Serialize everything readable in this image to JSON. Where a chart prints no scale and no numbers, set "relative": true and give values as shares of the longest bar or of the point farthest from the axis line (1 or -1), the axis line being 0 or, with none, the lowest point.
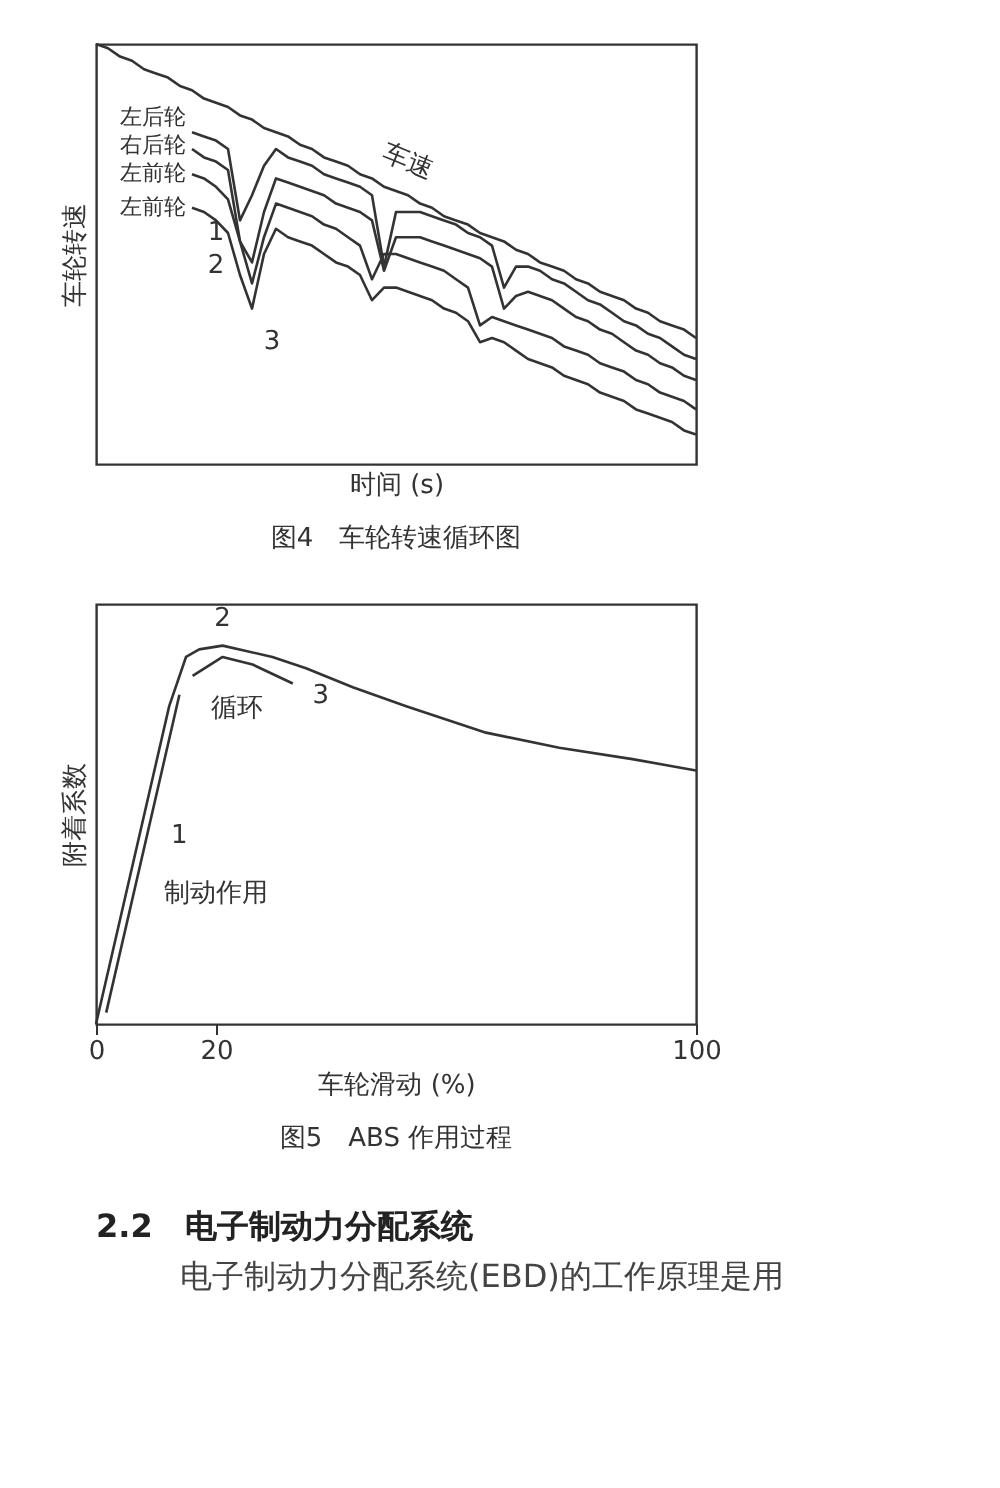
{
  "chart_data": [
    {
      "type": "line",
      "title": "图4　车轮转速循环图",
      "xlabel": "时间 (s)",
      "ylabel": "车轮转速",
      "relative": true,
      "tick_labels": false,
      "grid": false,
      "categories": [
        null,
        null,
        null,
        null,
        null,
        null,
        null,
        null,
        null,
        null,
        null,
        null,
        null,
        null,
        null,
        null,
        null,
        null,
        null,
        null,
        null,
        null,
        null,
        null,
        null,
        null,
        null,
        null,
        null,
        null,
        null,
        null,
        null,
        null,
        null,
        null,
        null,
        null,
        null,
        null,
        null,
        null,
        null,
        null,
        null,
        null,
        null,
        null,
        null,
        null,
        null
      ],
      "series": [
        {
          "name": "车速",
          "color": "#333333",
          "values": [
            1.0,
            0.99,
            0.97,
            0.96,
            0.94,
            0.93,
            0.92,
            0.9,
            0.89,
            0.87,
            0.86,
            0.85,
            0.83,
            0.82,
            0.8,
            0.79,
            0.78,
            0.76,
            0.75,
            0.73,
            0.72,
            0.71,
            0.69,
            0.68,
            0.66,
            0.65,
            0.64,
            0.62,
            0.61,
            0.59,
            0.58,
            0.57,
            0.55,
            0.54,
            0.53,
            0.51,
            0.5,
            0.48,
            0.47,
            0.46,
            0.44,
            0.43,
            0.41,
            0.4,
            0.39,
            0.37,
            0.36,
            0.34,
            0.33,
            0.32,
            0.3
          ]
        },
        {
          "name": "左后轮",
          "color": "#333333",
          "values": [
            null,
            null,
            null,
            null,
            null,
            null,
            null,
            null,
            0.79,
            0.78,
            0.77,
            0.75,
            0.58,
            0.64,
            0.71,
            0.75,
            0.73,
            0.72,
            0.71,
            0.69,
            0.68,
            0.67,
            0.66,
            0.64,
            0.47,
            0.6,
            0.6,
            0.6,
            0.59,
            0.58,
            0.57,
            0.55,
            0.54,
            0.52,
            0.42,
            0.47,
            0.47,
            0.46,
            0.44,
            0.43,
            0.41,
            0.39,
            0.38,
            0.36,
            0.34,
            0.33,
            0.31,
            0.3,
            0.28,
            0.26,
            0.25
          ]
        },
        {
          "name": "右后轮",
          "color": "#333333",
          "values": [
            null,
            null,
            null,
            null,
            null,
            null,
            null,
            null,
            0.75,
            0.73,
            0.72,
            0.7,
            0.53,
            0.48,
            0.6,
            0.68,
            0.67,
            0.66,
            0.65,
            0.64,
            0.62,
            0.61,
            0.6,
            0.58,
            0.46,
            0.54,
            0.54,
            0.54,
            0.53,
            0.52,
            0.51,
            0.5,
            0.49,
            0.47,
            0.37,
            0.4,
            0.41,
            0.4,
            0.39,
            0.37,
            0.35,
            0.34,
            0.32,
            0.31,
            0.29,
            0.27,
            0.26,
            0.24,
            0.23,
            0.21,
            0.2
          ]
        },
        {
          "name": "左前轮",
          "color": "#333333",
          "values": [
            null,
            null,
            null,
            null,
            null,
            null,
            null,
            null,
            0.69,
            0.68,
            0.66,
            0.63,
            0.53,
            0.43,
            0.54,
            0.62,
            0.61,
            0.6,
            0.59,
            0.57,
            0.56,
            0.54,
            0.52,
            0.44,
            0.5,
            0.5,
            0.49,
            0.48,
            0.47,
            0.46,
            0.44,
            0.42,
            0.33,
            0.35,
            0.34,
            0.33,
            0.32,
            0.31,
            0.3,
            0.28,
            0.27,
            0.26,
            0.24,
            0.23,
            0.22,
            0.2,
            0.19,
            0.17,
            0.16,
            0.15,
            0.13
          ]
        },
        {
          "name": "左前轮",
          "color": "#333333",
          "values": [
            null,
            null,
            null,
            null,
            null,
            null,
            null,
            null,
            0.61,
            0.6,
            0.58,
            0.55,
            0.45,
            0.37,
            0.5,
            0.56,
            0.54,
            0.53,
            0.52,
            0.5,
            0.48,
            0.47,
            0.45,
            0.39,
            0.42,
            0.42,
            0.41,
            0.4,
            0.39,
            0.37,
            0.36,
            0.34,
            0.29,
            0.3,
            0.29,
            0.27,
            0.25,
            0.24,
            0.23,
            0.21,
            0.2,
            0.19,
            0.17,
            0.16,
            0.15,
            0.13,
            0.12,
            0.11,
            0.1,
            0.08,
            0.07
          ]
        }
      ],
      "annotations": [
        "1",
        "2",
        "3"
      ]
    },
    {
      "type": "line",
      "title": "图5　ABS 作用过程",
      "xlabel": "车轮滑动 (%)",
      "ylabel": "附着系数",
      "relative": true,
      "tick_labels": "x",
      "grid": false,
      "xlim": [
        0,
        100
      ],
      "xticks": [
        0,
        20,
        100
      ],
      "series": [
        {
          "color": "#333333",
          "x": [
            0,
            12.2,
            15,
            17.2,
            21.1,
            29.4,
            35,
            42.8,
            51.7,
            65,
            77.2,
            89.4,
            100
          ],
          "values": [
            0,
            0.84,
            0.97,
            0.99,
            1.0,
            0.97,
            0.94,
            0.89,
            0.84,
            0.77,
            0.73,
            0.7,
            0.67
          ]
        },
        {
          "color": "#333333",
          "x": [
            16.1,
            21.1,
            26.1,
            32.8
          ],
          "values": [
            0.92,
            0.97,
            0.95,
            0.9
          ]
        },
        {
          "color": "#333333",
          "x": [
            1.7,
            13.9
          ],
          "values": [
            0.03,
            0.87
          ]
        }
      ],
      "annotations": [
        "2",
        "3",
        "1",
        "循环",
        "制动作用"
      ]
    },
    {
      "type": "other",
      "title": "2.2　电子制动力分配系统",
      "annotations": [
        "电子制动力分配系统(EBD)的工作原理是用"
      ]
    }
  ]
}
